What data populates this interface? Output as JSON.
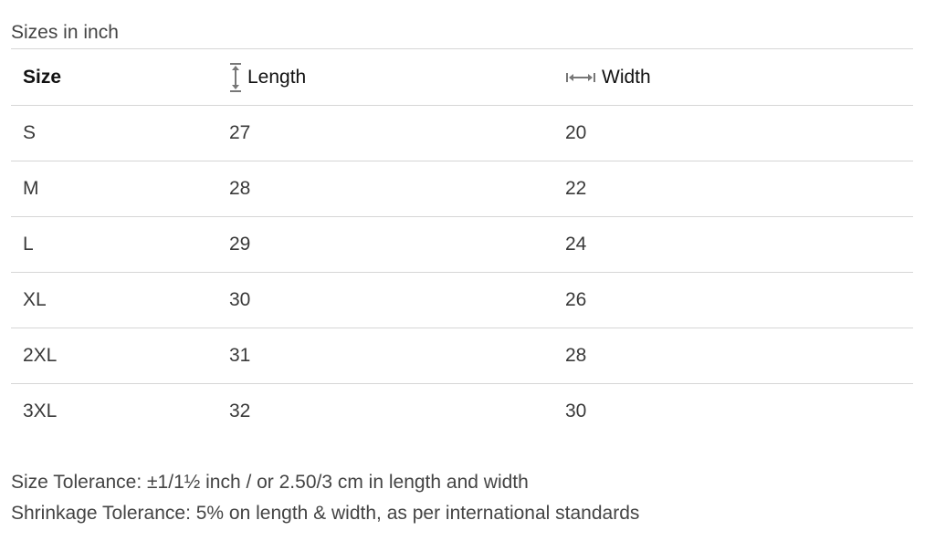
{
  "caption": "Sizes in inch",
  "table": {
    "headers": [
      "Size",
      "Length",
      "Width"
    ],
    "rows": [
      [
        "S",
        27,
        20
      ],
      [
        "M",
        28,
        22
      ],
      [
        "L",
        29,
        24
      ],
      [
        "XL",
        30,
        26
      ],
      [
        "2XL",
        31,
        28
      ],
      [
        "3XL",
        32,
        30
      ]
    ]
  },
  "notes": [
    "Size Tolerance: ±1/1½ inch / or 2.50/3 cm in length and width",
    "Shrinkage Tolerance: 5% on length & width, as per international standards"
  ]
}
